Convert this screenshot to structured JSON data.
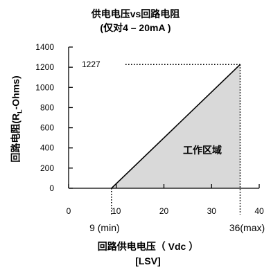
{
  "title_line1": "供电电压vs回路电阻",
  "title_line2": "(仅对4 – 20mA )",
  "xlabel_line1": "回路供电电压（ Vdc ）",
  "xlabel_line2": "[LSV]",
  "ylabel_prefix": "回路电阻(R",
  "ylabel_sub": "L",
  "ylabel_suffix": "-Ohms)",
  "region_label": "工作区域",
  "chart_data": {
    "type": "area",
    "x": [
      9,
      36
    ],
    "y": [
      0,
      1227
    ],
    "xlim": [
      0,
      40
    ],
    "ylim": [
      0,
      1400
    ],
    "xticks": [
      0,
      10,
      20,
      30,
      40
    ],
    "yticks": [
      0,
      200,
      400,
      600,
      800,
      1000,
      1200,
      1400
    ],
    "grid": false,
    "annotations": [
      {
        "text": "1227",
        "x": 36,
        "y": 1227
      },
      {
        "text": "9 (min)",
        "x": 9,
        "y": 0
      },
      {
        "text": "36(max)",
        "x": 36,
        "y": 0
      }
    ],
    "fill_color": "#d9d9d9"
  }
}
